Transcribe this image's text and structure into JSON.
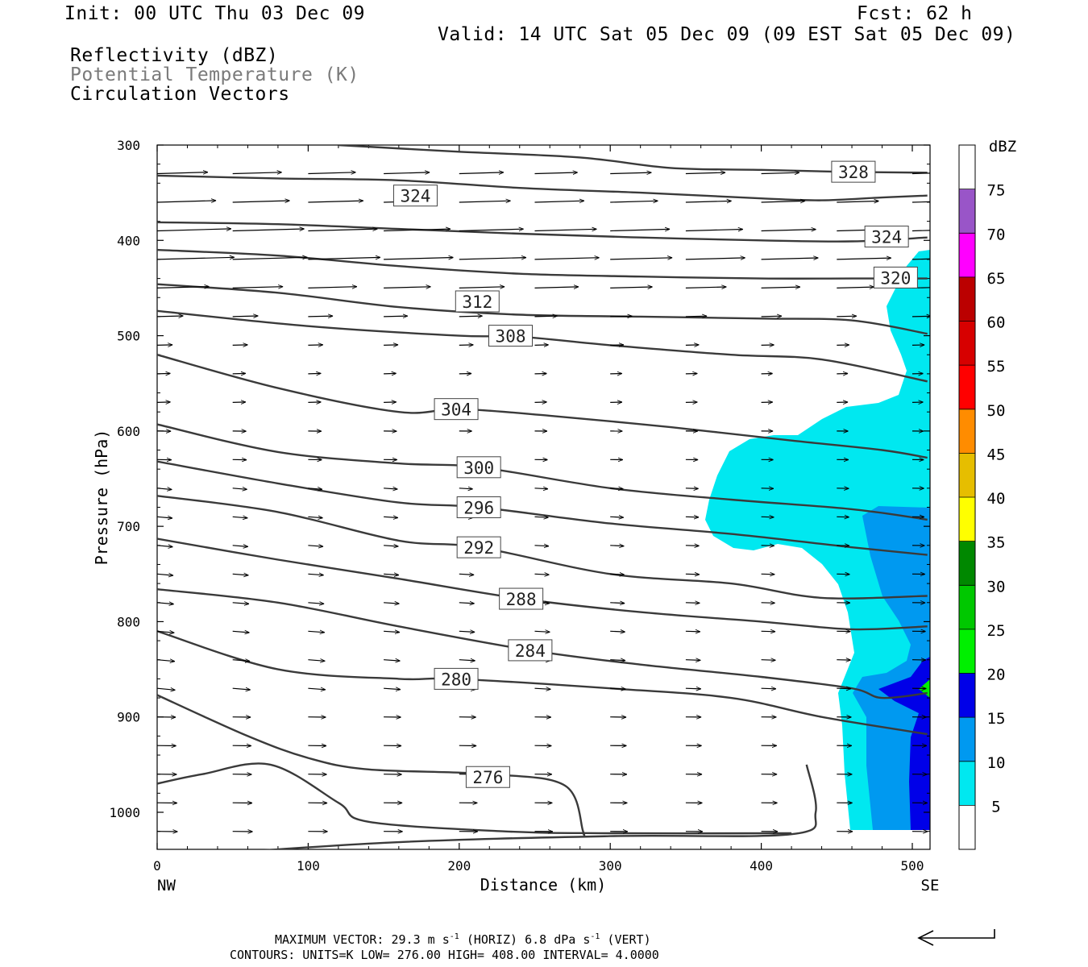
{
  "header": {
    "init": "Init: 00 UTC Thu 03 Dec 09",
    "fcst": "Fcst:   62 h",
    "valid": "Valid: 14 UTC Sat 05 Dec 09 (09 EST Sat 05 Dec 09)",
    "field1": "Reflectivity (dBZ)",
    "field2": "Potential Temperature (K)",
    "field3": "Circulation Vectors"
  },
  "footer": {
    "line1_a": "MAXIMUM VECTOR:  29.3 m s",
    "line1_b": " (HORIZ)          6.8 dPa s",
    "line1_c": " (VERT)",
    "exp": "-1",
    "line2": "CONTOURS:  UNITS=K  LOW=  276.00      HIGH=  408.00      INTERVAL=     4.0000"
  },
  "chart_data": {
    "type": "contour",
    "title": "",
    "xlabel": "Distance (km)",
    "ylabel": "Pressure (hPa)",
    "xlim": [
      0,
      510
    ],
    "ylim": [
      1040,
      300
    ],
    "x_ticks": [
      0,
      100,
      200,
      300,
      400,
      500
    ],
    "y_ticks": [
      300,
      400,
      500,
      600,
      700,
      800,
      900,
      1000
    ],
    "x_end_labels": {
      "left": "NW",
      "right": "SE"
    },
    "colorbar": {
      "label": "dBZ",
      "levels": [
        5,
        10,
        15,
        20,
        25,
        30,
        35,
        40,
        45,
        50,
        55,
        60,
        65,
        70,
        75
      ],
      "colors": [
        "#ffffff",
        "#00e8f0",
        "#0099f0",
        "#0000e8",
        "#00f000",
        "#00c800",
        "#008800",
        "#ffff00",
        "#e6be00",
        "#ff8c00",
        "#ff0000",
        "#d70000",
        "#bb0000",
        "#ff00ff",
        "#9955c8",
        "#ffffff"
      ]
    },
    "theta_contours": [
      {
        "label": "328",
        "points": [
          [
            120,
            300
          ],
          [
            200,
            307
          ],
          [
            280,
            313
          ],
          [
            340,
            324
          ],
          [
            400,
            326
          ],
          [
            450,
            328
          ],
          [
            510,
            329
          ]
        ],
        "label_at": [
          461,
          328
        ]
      },
      {
        "label": "324",
        "points": [
          [
            0,
            332
          ],
          [
            80,
            335
          ],
          [
            160,
            337
          ],
          [
            240,
            345
          ],
          [
            320,
            350
          ],
          [
            400,
            356
          ],
          [
            440,
            358
          ],
          [
            480,
            355
          ],
          [
            510,
            353
          ]
        ],
        "label_at": [
          171,
          353
        ]
      },
      {
        "label": "324",
        "points": [
          [
            0,
            381
          ],
          [
            80,
            383
          ],
          [
            160,
            388
          ],
          [
            240,
            393
          ],
          [
            320,
            397
          ],
          [
            400,
            400
          ],
          [
            460,
            401
          ],
          [
            510,
            397
          ]
        ],
        "label_at": [
          483,
          396
        ]
      },
      {
        "label": "320",
        "points": [
          [
            0,
            410
          ],
          [
            80,
            416
          ],
          [
            160,
            427
          ],
          [
            240,
            435
          ],
          [
            320,
            438
          ],
          [
            400,
            440
          ],
          [
            460,
            440
          ],
          [
            510,
            440
          ]
        ],
        "label_at": [
          489,
          439
        ]
      },
      {
        "label": "312",
        "points": [
          [
            0,
            446
          ],
          [
            80,
            455
          ],
          [
            160,
            470
          ],
          [
            240,
            478
          ],
          [
            320,
            480
          ],
          [
            400,
            482
          ],
          [
            460,
            484
          ],
          [
            510,
            498
          ]
        ],
        "label_at": [
          212,
          464
        ]
      },
      {
        "label": "308",
        "points": [
          [
            0,
            474
          ],
          [
            100,
            490
          ],
          [
            200,
            500
          ],
          [
            240,
            501
          ],
          [
            300,
            510
          ],
          [
            380,
            520
          ],
          [
            440,
            525
          ],
          [
            510,
            548
          ]
        ],
        "label_at": [
          234,
          500
        ]
      },
      {
        "label": "304",
        "points": [
          [
            0,
            520
          ],
          [
            80,
            555
          ],
          [
            160,
            580
          ],
          [
            200,
            577
          ],
          [
            260,
            584
          ],
          [
            340,
            596
          ],
          [
            420,
            610
          ],
          [
            480,
            620
          ],
          [
            510,
            628
          ]
        ],
        "label_at": [
          198,
          577
        ]
      },
      {
        "label": "300",
        "points": [
          [
            0,
            593
          ],
          [
            80,
            622
          ],
          [
            160,
            634
          ],
          [
            213,
            638
          ],
          [
            300,
            660
          ],
          [
            380,
            672
          ],
          [
            460,
            682
          ],
          [
            510,
            693
          ]
        ],
        "label_at": [
          213,
          638
        ]
      },
      {
        "label": "296",
        "points": [
          [
            0,
            632
          ],
          [
            80,
            655
          ],
          [
            160,
            675
          ],
          [
            213,
            680
          ],
          [
            300,
            697
          ],
          [
            380,
            708
          ],
          [
            460,
            722
          ],
          [
            510,
            730
          ]
        ],
        "label_at": [
          213,
          680
        ]
      },
      {
        "label": "292",
        "points": [
          [
            0,
            668
          ],
          [
            80,
            685
          ],
          [
            160,
            715
          ],
          [
            213,
            722
          ],
          [
            300,
            750
          ],
          [
            380,
            760
          ],
          [
            440,
            775
          ],
          [
            510,
            773
          ]
        ],
        "label_at": [
          213,
          722
        ]
      },
      {
        "label": "288",
        "points": [
          [
            0,
            713
          ],
          [
            80,
            735
          ],
          [
            160,
            755
          ],
          [
            241,
            776
          ],
          [
            320,
            790
          ],
          [
            400,
            800
          ],
          [
            460,
            808
          ],
          [
            510,
            805
          ]
        ],
        "label_at": [
          241,
          776
        ]
      },
      {
        "label": "284",
        "points": [
          [
            0,
            766
          ],
          [
            80,
            780
          ],
          [
            160,
            805
          ],
          [
            247,
            830
          ],
          [
            320,
            845
          ],
          [
            400,
            858
          ],
          [
            460,
            870
          ],
          [
            480,
            880
          ],
          [
            510,
            875
          ]
        ],
        "label_at": [
          247,
          830
        ]
      },
      {
        "label": "280",
        "points": [
          [
            0,
            810
          ],
          [
            80,
            850
          ],
          [
            160,
            860
          ],
          [
            198,
            860
          ],
          [
            300,
            870
          ],
          [
            380,
            880
          ],
          [
            440,
            900
          ],
          [
            510,
            918
          ]
        ],
        "label_at": [
          198,
          860
        ]
      },
      {
        "label": "276",
        "points": [
          [
            0,
            877
          ],
          [
            60,
            920
          ],
          [
            100,
            943
          ],
          [
            140,
            955
          ],
          [
            220,
            960
          ],
          [
            270,
            972
          ],
          [
            282,
            1020
          ],
          [
            282,
            1022
          ]
        ],
        "label_at": [
          219,
          963
        ]
      },
      {
        "label": "",
        "points": [
          [
            0,
            970
          ],
          [
            30,
            960
          ],
          [
            75,
            950
          ],
          [
            120,
            990
          ],
          [
            140,
            1010
          ],
          [
            230,
            1020
          ],
          [
            300,
            1022
          ],
          [
            420,
            1022
          ]
        ]
      },
      {
        "label": "",
        "points": [
          [
            0,
            1048
          ],
          [
            150,
            1032
          ],
          [
            300,
            1025
          ],
          [
            420,
            1023
          ],
          [
            436,
            1000
          ],
          [
            430,
            950
          ]
        ]
      }
    ],
    "vectors_note": "circulation vectors drawn on a grid, westerly flow strongest at 380-460 hPa",
    "max_vector_horiz": 29.3,
    "max_vector_vert": 6.8,
    "contour_low": 276.0,
    "contour_high": 408.0,
    "contour_interval": 4.0
  }
}
